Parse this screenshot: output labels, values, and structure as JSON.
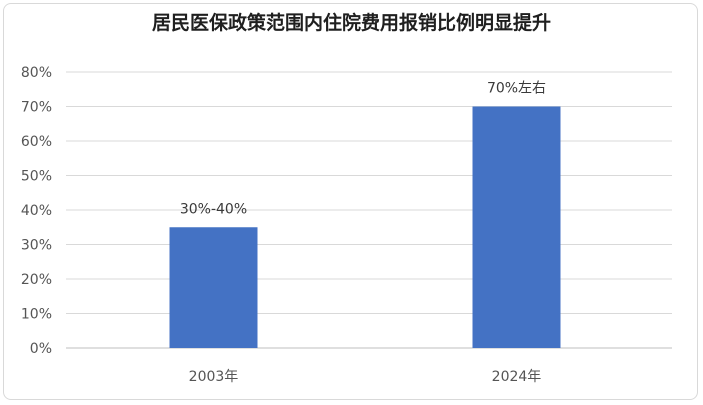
{
  "chart_data": {
    "type": "bar",
    "title": "居民医保政策范围内住院费用报销比例明显提升",
    "categories": [
      "2003年",
      "2024年"
    ],
    "values": [
      35,
      70
    ],
    "data_labels": [
      "30%-40%",
      "70%左右"
    ],
    "ylim": [
      0,
      80
    ],
    "yticks": [
      "0%",
      "10%",
      "20%",
      "30%",
      "40%",
      "50%",
      "60%",
      "70%",
      "80%"
    ],
    "grid": true,
    "legend": "none",
    "bar_color": "#4472c4",
    "grid_color": "#d9d9d9"
  }
}
